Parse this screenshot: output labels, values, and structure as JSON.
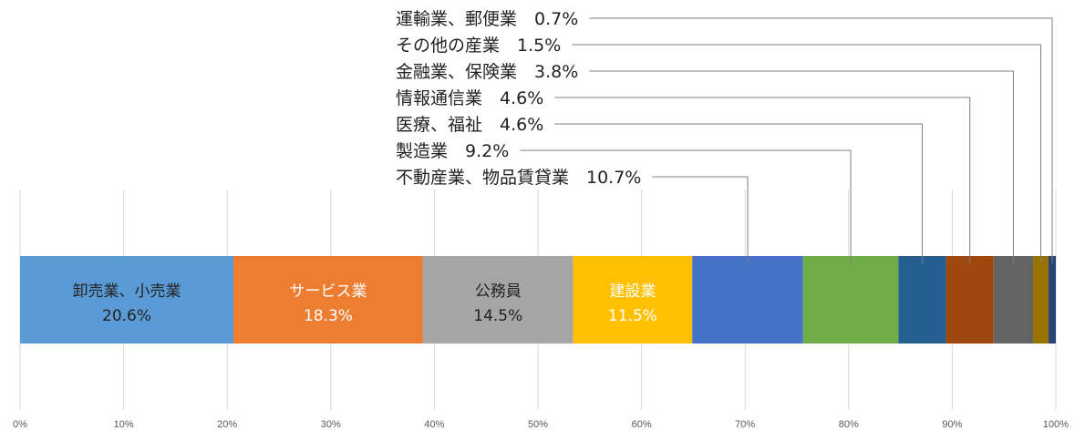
{
  "chart_data": {
    "type": "bar",
    "orientation": "horizontal",
    "stacked": "100%",
    "xlim": [
      0,
      100
    ],
    "ticks": [
      "0%",
      "10%",
      "20%",
      "30%",
      "40%",
      "50%",
      "60%",
      "70%",
      "80%",
      "90%",
      "100%"
    ],
    "grid": true,
    "series": [
      {
        "name": "卸売業、小売業",
        "value": 20.6,
        "value_label": "20.6%",
        "color": "#5B9BD5",
        "label_style": "inside",
        "label_color": "#222222"
      },
      {
        "name": "サービス業",
        "value": 18.3,
        "value_label": "18.3%",
        "color": "#ED7D31",
        "label_style": "inside",
        "label_color": "#ffffff"
      },
      {
        "name": "公務員",
        "value": 14.5,
        "value_label": "14.5%",
        "color": "#A5A5A5",
        "label_style": "inside",
        "label_color": "#222222"
      },
      {
        "name": "建設業",
        "value": 11.5,
        "value_label": "11.5%",
        "color": "#FFC000",
        "label_style": "inside",
        "label_color": "#ffffff"
      },
      {
        "name": "不動産業、物品賃貸業",
        "value": 10.7,
        "value_label": "10.7%",
        "color": "#4472C4",
        "label_style": "callout"
      },
      {
        "name": "製造業",
        "value": 9.2,
        "value_label": "9.2%",
        "color": "#70AD47",
        "label_style": "callout"
      },
      {
        "name": "医療、福祉",
        "value": 4.6,
        "value_label": "4.6%",
        "color": "#255E91",
        "label_style": "callout"
      },
      {
        "name": "情報通信業",
        "value": 4.6,
        "value_label": "4.6%",
        "color": "#9E480E",
        "label_style": "callout"
      },
      {
        "name": "金融業、保険業",
        "value": 3.8,
        "value_label": "3.8%",
        "color": "#636363",
        "label_style": "callout"
      },
      {
        "name": "その他の産業",
        "value": 1.5,
        "value_label": "1.5%",
        "color": "#997300",
        "label_style": "callout"
      },
      {
        "name": "運輸業、郵便業",
        "value": 0.7,
        "value_label": "0.7%",
        "color": "#264478",
        "label_style": "callout"
      }
    ]
  }
}
